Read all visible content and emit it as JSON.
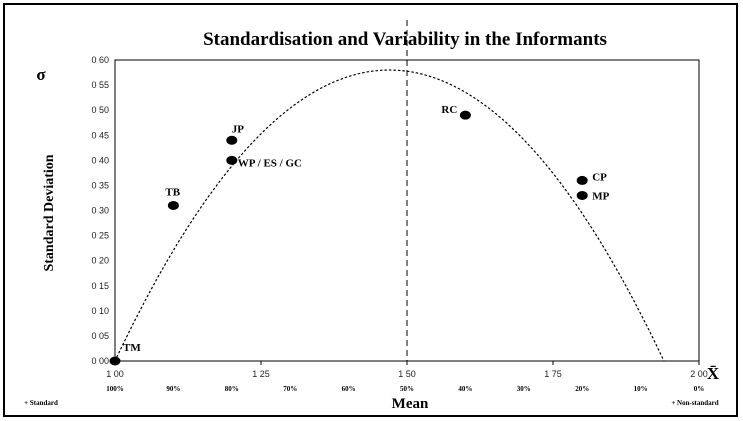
{
  "chart_data": {
    "type": "scatter",
    "title": "Standardisation and Variability in the Informants",
    "xlabel": "Mean",
    "ylabel": "Standard Deviation",
    "y_symbol": "σ",
    "x_symbol": "X̄",
    "xlim": [
      1.0,
      2.0
    ],
    "ylim": [
      0.0,
      0.6
    ],
    "x_ticks": [
      1.0,
      1.25,
      1.5,
      1.75,
      2.0
    ],
    "x_tick_labels": [
      "1 00",
      "1 25",
      "1 50",
      "1 75",
      "2 00"
    ],
    "y_ticks": [
      0.0,
      0.05,
      0.1,
      0.15,
      0.2,
      0.25,
      0.3,
      0.35,
      0.4,
      0.45,
      0.5,
      0.55,
      0.6
    ],
    "y_tick_labels": [
      "0 00",
      "0 05",
      "0 10",
      "0 15",
      "0 20",
      "0 25",
      "0 30",
      "0 35",
      "0 40",
      "0 45",
      "0 50",
      "0 55",
      "0 60"
    ],
    "percent_labels": [
      {
        "x": 1.0,
        "label": "100%"
      },
      {
        "x": 1.1,
        "label": "90%"
      },
      {
        "x": 1.2,
        "label": "80%"
      },
      {
        "x": 1.3,
        "label": "70%"
      },
      {
        "x": 1.4,
        "label": "60%"
      },
      {
        "x": 1.5,
        "label": "50%"
      },
      {
        "x": 1.6,
        "label": "40%"
      },
      {
        "x": 1.7,
        "label": "30%"
      },
      {
        "x": 1.8,
        "label": "20%"
      },
      {
        "x": 1.9,
        "label": "10%"
      },
      {
        "x": 2.0,
        "label": "0%"
      }
    ],
    "end_labels": {
      "left": "+ Standard",
      "right": "+ Non-standard"
    },
    "points": [
      {
        "label": "TM",
        "x": 1.0,
        "y": 0.0
      },
      {
        "label": "TB",
        "x": 1.1,
        "y": 0.31
      },
      {
        "label": "JP",
        "x": 1.2,
        "y": 0.44
      },
      {
        "label": "WP / ES / GC",
        "x": 1.2,
        "y": 0.4
      },
      {
        "label": "RC",
        "x": 1.6,
        "y": 0.49
      },
      {
        "label": "CP",
        "x": 1.8,
        "y": 0.36
      },
      {
        "label": "MP",
        "x": 1.8,
        "y": 0.33
      }
    ],
    "trendline": {
      "type": "polynomial",
      "degree": 2,
      "vertex_x": 1.47,
      "vertex_y": 0.58,
      "style": "dotted"
    },
    "reference_line": {
      "x": 1.5,
      "style": "dashed"
    },
    "grid": false,
    "legend": "none"
  }
}
